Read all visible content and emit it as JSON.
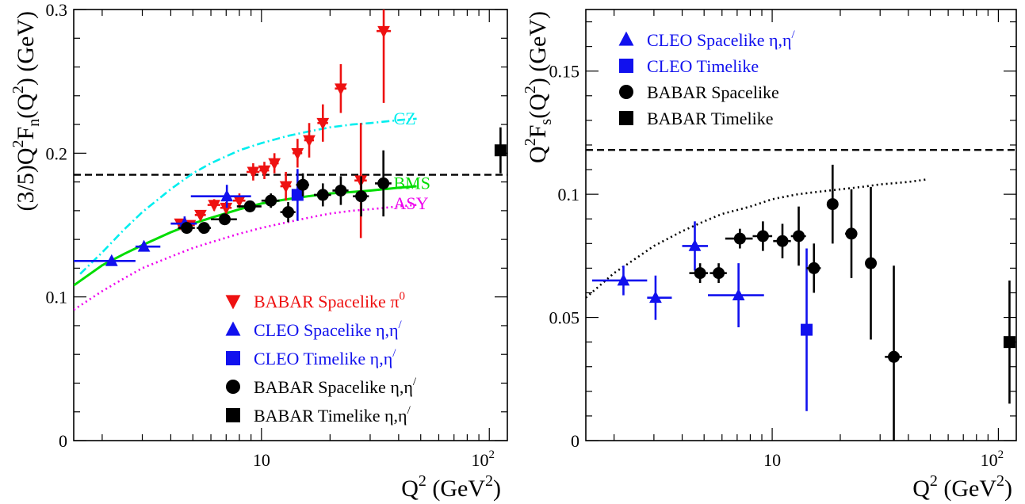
{
  "chart_data": [
    {
      "type": "scatter",
      "xscale": "log",
      "xlim": [
        1.5,
        120
      ],
      "ylim": [
        0,
        0.3
      ],
      "xlabel": {
        "base": "Q",
        "sup": "2",
        "unit_open": " (GeV",
        "unit_sup": "2",
        "unit_close": ")"
      },
      "ylabel": {
        "pre": "(3/5)Q",
        "sup1": "2",
        "mid": "F",
        "sub": "n",
        "mid2": "(Q",
        "sup2": "2",
        "post": ") (GeV)"
      },
      "yticks": [
        {
          "value": 0,
          "label": "0"
        },
        {
          "value": 0.1,
          "label": "0.1"
        },
        {
          "value": 0.2,
          "label": "0.2"
        },
        {
          "value": 0.3,
          "label": "0.3"
        }
      ],
      "xticks": [
        {
          "value": 10,
          "label": "10",
          "sup": ""
        },
        {
          "value": 100,
          "label": "10",
          "sup": "2"
        }
      ],
      "hline": {
        "y": 0.185,
        "style": "dashed",
        "color": "#000000"
      },
      "curves": [
        {
          "name": "CZ",
          "style": "dashdot",
          "color": "#00eeee",
          "x": [
            1.6,
            2,
            2.5,
            3,
            4,
            5,
            6,
            8,
            10,
            13,
            16,
            20,
            25,
            30,
            40,
            48
          ],
          "y": [
            0.116,
            0.131,
            0.147,
            0.159,
            0.175,
            0.186,
            0.193,
            0.202,
            0.207,
            0.212,
            0.215,
            0.218,
            0.22,
            0.221,
            0.223,
            0.224
          ]
        },
        {
          "name": "BMS",
          "style": "solid",
          "color": "#00dd00",
          "x": [
            1.5,
            2,
            2.5,
            3,
            4,
            5,
            6,
            8,
            10,
            13,
            16,
            20,
            25,
            30,
            40,
            48
          ],
          "y": [
            0.108,
            0.122,
            0.13,
            0.136,
            0.145,
            0.151,
            0.155,
            0.161,
            0.165,
            0.168,
            0.17,
            0.172,
            0.173,
            0.174,
            0.176,
            0.177
          ]
        },
        {
          "name": "ASY",
          "style": "dotted",
          "color": "#ee00ee",
          "x": [
            1.5,
            2,
            2.5,
            3,
            4,
            5,
            6,
            8,
            10,
            13,
            16,
            20,
            25,
            30,
            40,
            48
          ],
          "y": [
            0.091,
            0.104,
            0.113,
            0.12,
            0.128,
            0.134,
            0.138,
            0.144,
            0.148,
            0.152,
            0.155,
            0.158,
            0.16,
            0.161,
            0.163,
            0.164
          ]
        }
      ],
      "curve_labels": [
        {
          "text": "CZ",
          "x": 38,
          "y": 0.225,
          "color": "#00eeee"
        },
        {
          "text": "BMS",
          "x": 38,
          "y": 0.18,
          "color": "#00dd00"
        },
        {
          "text": "ASY",
          "x": 38,
          "y": 0.166,
          "color": "#ee00ee"
        }
      ],
      "series": [
        {
          "name": "BABAR Spacelike π0",
          "marker": "triangle-down",
          "color": "#ee1111",
          "points": [
            {
              "x": 4.4,
              "y": 0.151,
              "xerr": [
                4.0,
                4.8
              ],
              "yerr": 0.003
            },
            {
              "x": 4.85,
              "y": 0.15,
              "xerr": [
                4.6,
                5.1
              ],
              "yerr": 0.003
            },
            {
              "x": 5.4,
              "y": 0.157,
              "xerr": [
                5.1,
                5.7
              ],
              "yerr": 0.003
            },
            {
              "x": 6.2,
              "y": 0.164,
              "xerr": [
                5.8,
                6.6
              ],
              "yerr": 0.004
            },
            {
              "x": 7.0,
              "y": 0.162,
              "xerr": [
                6.6,
                7.4
              ],
              "yerr": 0.004
            },
            {
              "x": 8.0,
              "y": 0.167,
              "xerr": [
                7.5,
                8.5
              ],
              "yerr": 0.005
            },
            {
              "x": 9.2,
              "y": 0.187,
              "xerr": [
                8.6,
                9.8
              ],
              "yerr": 0.006
            },
            {
              "x": 10.3,
              "y": 0.188,
              "xerr": [
                9.8,
                10.8
              ],
              "yerr": 0.006
            },
            {
              "x": 11.4,
              "y": 0.193,
              "xerr": [
                10.9,
                11.9
              ],
              "yerr": 0.007
            },
            {
              "x": 12.8,
              "y": 0.177,
              "xerr": [
                12.1,
                13.5
              ],
              "yerr": 0.01
            },
            {
              "x": 14.4,
              "y": 0.2,
              "xerr": [
                13.7,
                15.1
              ],
              "yerr": 0.01
            },
            {
              "x": 16.2,
              "y": 0.209,
              "xerr": [
                15.4,
                17.0
              ],
              "yerr": 0.012
            },
            {
              "x": 18.6,
              "y": 0.221,
              "xerr": [
                17.6,
                19.6
              ],
              "yerr": 0.013
            },
            {
              "x": 22.3,
              "y": 0.245,
              "xerr": [
                21.0,
                23.6
              ],
              "yerr": 0.017
            },
            {
              "x": 27.3,
              "y": 0.181,
              "xerr": [
                25.6,
                29.0
              ],
              "yerr": 0.04
            },
            {
              "x": 34.4,
              "y": 0.285,
              "xerr": [
                32.0,
                37.0
              ],
              "yerr": 0.05
            }
          ]
        },
        {
          "name": "CLEO Spacelike η,η′",
          "marker": "triangle-up",
          "color": "#1111ee",
          "points": [
            {
              "x": 2.2,
              "y": 0.125,
              "xerr": [
                1.5,
                2.8
              ],
              "yerr": 0.003
            },
            {
              "x": 3.05,
              "y": 0.135,
              "xerr": [
                2.8,
                3.6
              ],
              "yerr": 0.003
            },
            {
              "x": 4.6,
              "y": 0.151,
              "xerr": [
                4.0,
                5.2
              ],
              "yerr": 0.005
            },
            {
              "x": 7.05,
              "y": 0.17,
              "xerr": [
                4.9,
                9.0
              ],
              "yerr": 0.008
            }
          ]
        },
        {
          "name": "CLEO Timelike η,η′",
          "marker": "square",
          "color": "#1111ee",
          "points": [
            {
              "x": 14.4,
              "y": 0.171,
              "xerr": null,
              "yerr": 0.018
            }
          ]
        },
        {
          "name": "BABAR Spacelike η,η′",
          "marker": "circle",
          "color": "#000000",
          "points": [
            {
              "x": 4.7,
              "y": 0.148,
              "xerr": [
                4.3,
                5.1
              ],
              "yerr": 0.003
            },
            {
              "x": 5.6,
              "y": 0.148,
              "xerr": [
                5.2,
                6.0
              ],
              "yerr": 0.003
            },
            {
              "x": 6.9,
              "y": 0.154,
              "xerr": [
                6.0,
                7.8
              ],
              "yerr": 0.003
            },
            {
              "x": 8.9,
              "y": 0.163,
              "xerr": [
                7.8,
                10.0
              ],
              "yerr": 0.004
            },
            {
              "x": 11.0,
              "y": 0.167,
              "xerr": [
                10.0,
                12.0
              ],
              "yerr": 0.005
            },
            {
              "x": 13.1,
              "y": 0.159,
              "xerr": [
                12.1,
                14.1
              ],
              "yerr": 0.007
            },
            {
              "x": 15.2,
              "y": 0.178,
              "xerr": [
                14.2,
                16.2
              ],
              "yerr": 0.008
            },
            {
              "x": 18.6,
              "y": 0.171,
              "xerr": [
                17.0,
                20.2
              ],
              "yerr": 0.008
            },
            {
              "x": 22.3,
              "y": 0.174,
              "xerr": [
                20.5,
                24.1
              ],
              "yerr": 0.01
            },
            {
              "x": 27.4,
              "y": 0.17,
              "xerr": [
                25.2,
                29.6
              ],
              "yerr": 0.014
            },
            {
              "x": 34.3,
              "y": 0.179,
              "xerr": [
                31.5,
                37.2
              ],
              "yerr": 0.023
            }
          ]
        },
        {
          "name": "BABAR Timelike η,η′",
          "marker": "square",
          "color": "#000000",
          "points": [
            {
              "x": 112,
              "y": 0.202,
              "xerr": null,
              "yerr": 0.016
            }
          ]
        }
      ],
      "legend": {
        "placement": "bottom-right",
        "entries": [
          {
            "text": "BABAR Spacelike π",
            "sup": "0",
            "marker": "triangle-down",
            "color": "#ee1111"
          },
          {
            "text": "CLEO Spacelike η,η",
            "sup": "/",
            "marker": "triangle-up",
            "color": "#1111ee"
          },
          {
            "text": "CLEO Timelike η,η",
            "sup": "/",
            "marker": "square",
            "color": "#1111ee"
          },
          {
            "text": "BABAR Spacelike η,η",
            "sup": "/",
            "marker": "circle",
            "color": "#000000"
          },
          {
            "text": "BABAR Timelike η,η",
            "sup": "/",
            "marker": "square",
            "color": "#000000"
          }
        ]
      }
    },
    {
      "type": "scatter",
      "xscale": "log",
      "xlim": [
        1.5,
        120
      ],
      "ylim": [
        0,
        0.175
      ],
      "xlabel": {
        "base": "Q",
        "sup": "2",
        "unit_open": " (GeV",
        "unit_sup": "2",
        "unit_close": ")"
      },
      "ylabel": {
        "pre": "Q",
        "sup1": "2",
        "mid": "F",
        "sub": "s",
        "mid2": "(Q",
        "sup2": "2",
        "post": ") (GeV)"
      },
      "yticks": [
        {
          "value": 0,
          "label": "0"
        },
        {
          "value": 0.05,
          "label": "0.05"
        },
        {
          "value": 0.1,
          "label": "0.1"
        },
        {
          "value": 0.15,
          "label": "0.15"
        }
      ],
      "xticks": [
        {
          "value": 10,
          "label": "10",
          "sup": ""
        },
        {
          "value": 100,
          "label": "10",
          "sup": "2"
        }
      ],
      "hline": {
        "y": 0.118,
        "style": "dashed",
        "color": "#000000"
      },
      "curves": [
        {
          "name": "",
          "style": "dotted",
          "color": "#000000",
          "x": [
            1.5,
            2,
            2.5,
            3,
            4,
            5,
            6,
            8,
            10,
            13,
            16,
            20,
            25,
            30,
            40,
            48
          ],
          "y": [
            0.058,
            0.068,
            0.074,
            0.079,
            0.085,
            0.089,
            0.092,
            0.095,
            0.098,
            0.1,
            0.101,
            0.102,
            0.103,
            0.104,
            0.105,
            0.106
          ]
        }
      ],
      "curve_labels": [],
      "series": [
        {
          "name": "CLEO Spacelike η,η′",
          "marker": "triangle-up",
          "color": "#1111ee",
          "points": [
            {
              "x": 2.2,
              "y": 0.065,
              "xerr": [
                1.6,
                2.8
              ],
              "yerr": 0.006
            },
            {
              "x": 3.05,
              "y": 0.058,
              "xerr": [
                2.8,
                3.6
              ],
              "yerr": 0.009
            },
            {
              "x": 4.55,
              "y": 0.079,
              "xerr": [
                4.0,
                5.2
              ],
              "yerr": 0.01
            },
            {
              "x": 7.1,
              "y": 0.059,
              "xerr": [
                5.2,
                9.2
              ],
              "yerr": 0.013
            }
          ]
        },
        {
          "name": "CLEO Timelike",
          "marker": "square",
          "color": "#1111ee",
          "points": [
            {
              "x": 14.2,
              "y": 0.045,
              "xerr": null,
              "yerr": 0.033
            }
          ]
        },
        {
          "name": "BABAR Spacelike",
          "marker": "circle",
          "color": "#000000",
          "points": [
            {
              "x": 4.8,
              "y": 0.068,
              "xerr": [
                4.3,
                5.2
              ],
              "yerr": 0.004
            },
            {
              "x": 5.8,
              "y": 0.068,
              "xerr": [
                5.3,
                6.3
              ],
              "yerr": 0.004
            },
            {
              "x": 7.2,
              "y": 0.082,
              "xerr": [
                6.2,
                8.2
              ],
              "yerr": 0.004
            },
            {
              "x": 9.1,
              "y": 0.083,
              "xerr": [
                8.2,
                10.0
              ],
              "yerr": 0.006
            },
            {
              "x": 11.1,
              "y": 0.081,
              "xerr": [
                10.1,
                12.1
              ],
              "yerr": 0.007
            },
            {
              "x": 13.1,
              "y": 0.083,
              "xerr": [
                12.1,
                14.1
              ],
              "yerr": 0.012
            },
            {
              "x": 15.3,
              "y": 0.07,
              "xerr": [
                14.2,
                16.4
              ],
              "yerr": 0.01
            },
            {
              "x": 18.5,
              "y": 0.096,
              "xerr": [
                17.5,
                19.5
              ],
              "yerr": 0.016
            },
            {
              "x": 22.4,
              "y": 0.084,
              "xerr": [
                21.0,
                23.8
              ],
              "yerr": 0.018
            },
            {
              "x": 27.3,
              "y": 0.072,
              "xerr": [
                25.8,
                28.8
              ],
              "yerr": 0.031
            },
            {
              "x": 34.5,
              "y": 0.034,
              "xerr": [
                31.5,
                37.5
              ],
              "yerr": 0.037
            }
          ]
        },
        {
          "name": "BABAR Timelike",
          "marker": "square",
          "color": "#000000",
          "points": [
            {
              "x": 112,
              "y": 0.04,
              "xerr": null,
              "yerr": 0.025
            }
          ]
        }
      ],
      "legend": {
        "placement": "top-left",
        "entries": [
          {
            "text": "CLEO Spacelike   η,η",
            "sup": "/",
            "marker": "triangle-up",
            "color": "#1111ee"
          },
          {
            "text": "CLEO Timelike",
            "sup": "",
            "marker": "square",
            "color": "#1111ee"
          },
          {
            "text": "BABAR Spacelike",
            "sup": "",
            "marker": "circle",
            "color": "#000000"
          },
          {
            "text": "BABAR Timelike",
            "sup": "",
            "marker": "square",
            "color": "#000000"
          }
        ]
      }
    }
  ]
}
